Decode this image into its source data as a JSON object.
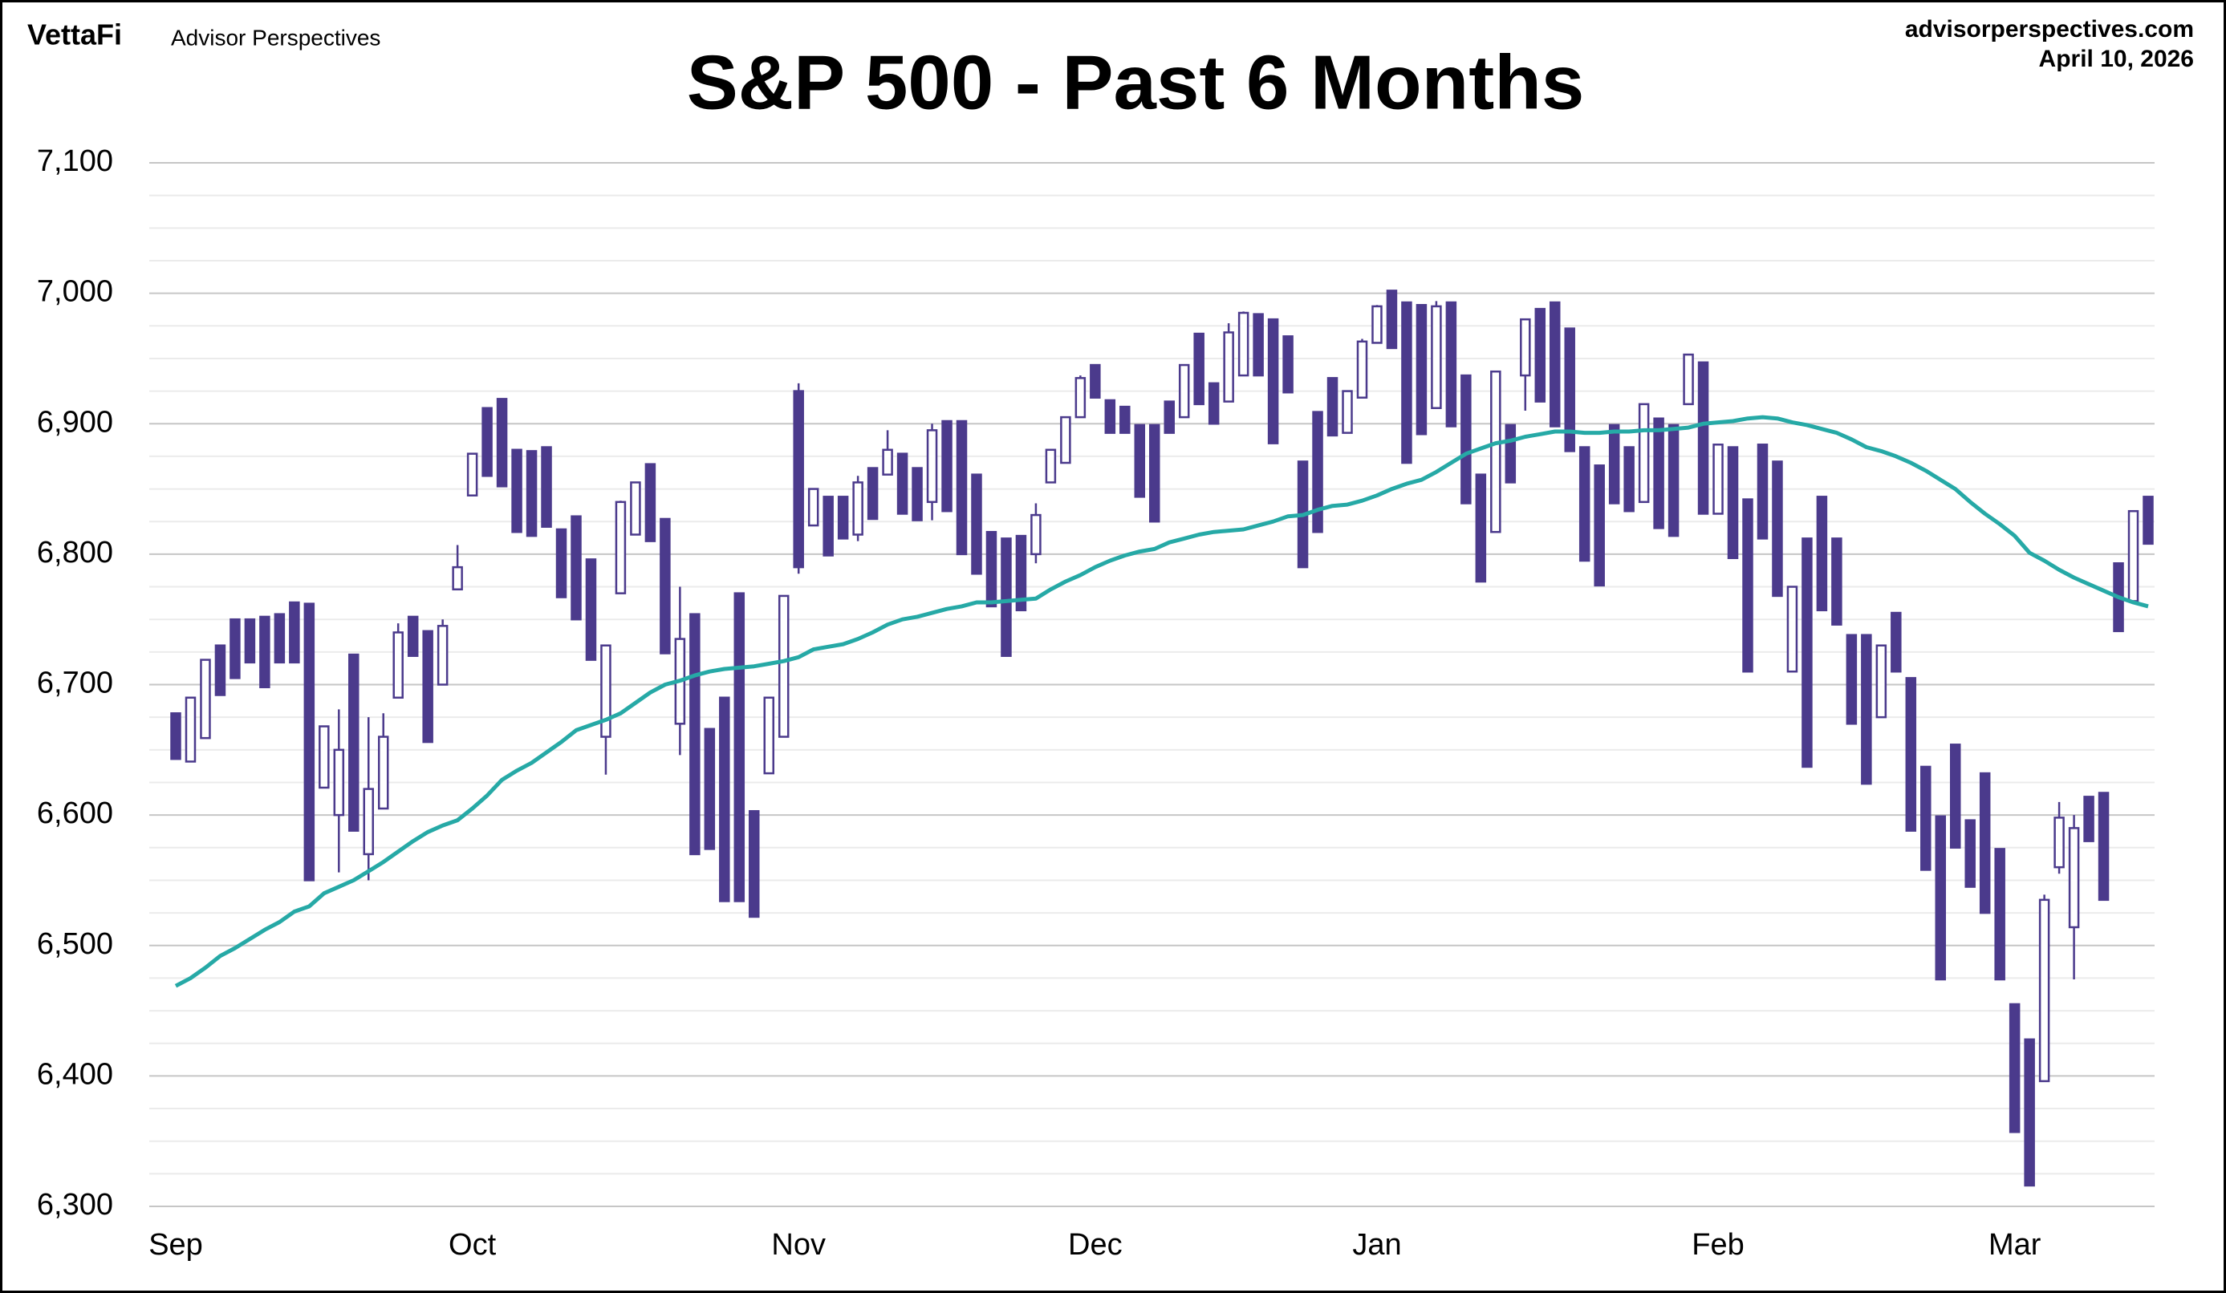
{
  "header": {
    "logo": "VettaFi",
    "brand": "Advisor Perspectives",
    "site": "advisorperspectives.com",
    "date": "April 10, 2026"
  },
  "chart_data": {
    "type": "candlestick",
    "title": "S&P 500 - Past 6 Months",
    "categories": [
      "Sep",
      null,
      null,
      null,
      null,
      null,
      null,
      null,
      null,
      null,
      null,
      null,
      null,
      null,
      null,
      null,
      null,
      null,
      null,
      null,
      "Oct",
      null,
      null,
      null,
      null,
      null,
      null,
      null,
      null,
      null,
      null,
      null,
      null,
      null,
      null,
      null,
      null,
      null,
      null,
      null,
      null,
      null,
      "Nov",
      null,
      null,
      null,
      null,
      null,
      null,
      null,
      null,
      null,
      null,
      null,
      null,
      null,
      null,
      null,
      null,
      null,
      null,
      null,
      "Dec",
      null,
      null,
      null,
      null,
      null,
      null,
      null,
      null,
      null,
      null,
      null,
      null,
      null,
      null,
      null,
      null,
      null,
      null,
      "Jan",
      null,
      null,
      null,
      null,
      null,
      null,
      null,
      null,
      null,
      null,
      null,
      null,
      null,
      null,
      null,
      null,
      null,
      null,
      null,
      null,
      null,
      null,
      "Feb",
      null,
      null,
      null,
      null,
      null,
      null,
      null,
      null,
      null,
      null,
      null,
      null,
      null,
      null,
      null,
      null,
      null,
      null,
      null,
      "Mar",
      null,
      null,
      null,
      null,
      null,
      null,
      null,
      null,
      null
    ],
    "open": [
      6678,
      6641,
      6659,
      6730,
      6750,
      6750,
      6752,
      6754,
      6763,
      6762,
      6621,
      6600,
      6723,
      6570,
      6605,
      6690,
      6752,
      6741,
      6700,
      6773,
      6845,
      6912,
      6919,
      6880,
      6879,
      6882,
      6819,
      6829,
      6796,
      6660,
      6770,
      6815,
      6869,
      6827,
      6670,
      6754,
      6666,
      6690,
      6770,
      6603,
      6632,
      6660,
      6925,
      6822,
      6844,
      6844,
      6815,
      6866,
      6861,
      6877,
      6866,
      6840,
      6902,
      6902,
      6861,
      6817,
      6812,
      6814,
      6800,
      6855,
      6870,
      6905,
      6945,
      6918,
      6913,
      6899,
      6899,
      6917,
      6905,
      6969,
      6931,
      6917,
      6937,
      6984,
      6980,
      6967,
      6871,
      6909,
      6935,
      6893,
      6920,
      6962,
      7002,
      6993,
      6991,
      6912,
      6993,
      6937,
      6861,
      6817,
      6899,
      6937,
      6988,
      6993,
      6973,
      6882,
      6868,
      6899,
      6882,
      6840,
      6904,
      6899,
      6915,
      6947,
      6831,
      6882,
      6842,
      6884,
      6871,
      6710,
      6812,
      6844,
      6812,
      6738,
      6738,
      6675,
      6755,
      6705,
      6637,
      6599,
      6654,
      6596,
      6632,
      6574,
      6455,
      6428,
      6396,
      6560,
      6514,
      6614,
      6617,
      6793,
      6764,
      6844
    ],
    "high": [
      6678,
      6690,
      6719,
      6730,
      6750,
      6750,
      6752,
      6754,
      6763,
      6762,
      6668,
      6681,
      6723,
      6675,
      6678,
      6747,
      6752,
      6741,
      6750,
      6807,
      6877,
      6912,
      6919,
      6880,
      6879,
      6882,
      6819,
      6829,
      6796,
      6730,
      6841,
      6855,
      6869,
      6827,
      6775,
      6754,
      6666,
      6690,
      6770,
      6603,
      6690,
      6768,
      6931,
      6850,
      6844,
      6844,
      6860,
      6866,
      6895,
      6877,
      6866,
      6900,
      6902,
      6902,
      6861,
      6817,
      6812,
      6814,
      6839,
      6880,
      6905,
      6937,
      6945,
      6918,
      6913,
      6899,
      6899,
      6917,
      6945,
      6969,
      6931,
      6977,
      6986,
      6984,
      6980,
      6967,
      6871,
      6909,
      6935,
      6925,
      6965,
      6991,
      7002,
      6993,
      6991,
      6994,
      6993,
      6937,
      6861,
      6940,
      6899,
      6980,
      6988,
      6993,
      6973,
      6882,
      6868,
      6899,
      6882,
      6915,
      6904,
      6899,
      6953,
      6947,
      6884,
      6882,
      6842,
      6884,
      6871,
      6775,
      6812,
      6844,
      6812,
      6738,
      6738,
      6730,
      6755,
      6705,
      6637,
      6599,
      6654,
      6596,
      6632,
      6574,
      6455,
      6428,
      6539,
      6610,
      6600,
      6614,
      6617,
      6793,
      6833,
      6844
    ],
    "low": [
      6643,
      6641,
      6659,
      6692,
      6705,
      6717,
      6698,
      6717,
      6717,
      6550,
      6621,
      6556,
      6588,
      6550,
      6605,
      6690,
      6722,
      6656,
      6700,
      6773,
      6845,
      6860,
      6852,
      6817,
      6814,
      6821,
      6767,
      6750,
      6719,
      6631,
      6770,
      6815,
      6810,
      6724,
      6646,
      6570,
      6574,
      6534,
      6534,
      6522,
      6632,
      6660,
      6785,
      6822,
      6799,
      6812,
      6810,
      6827,
      6861,
      6831,
      6826,
      6826,
      6833,
      6800,
      6785,
      6760,
      6722,
      6757,
      6793,
      6855,
      6870,
      6905,
      6920,
      6893,
      6893,
      6844,
      6825,
      6893,
      6905,
      6915,
      6900,
      6917,
      6937,
      6937,
      6885,
      6924,
      6790,
      6817,
      6891,
      6893,
      6920,
      6962,
      6958,
      6870,
      6892,
      6912,
      6898,
      6839,
      6779,
      6817,
      6855,
      6910,
      6917,
      6898,
      6879,
      6795,
      6776,
      6839,
      6833,
      6840,
      6820,
      6814,
      6915,
      6831,
      6831,
      6797,
      6710,
      6812,
      6768,
      6710,
      6637,
      6757,
      6746,
      6670,
      6624,
      6675,
      6710,
      6588,
      6558,
      6474,
      6575,
      6545,
      6525,
      6474,
      6357,
      6316,
      6396,
      6555,
      6474,
      6580,
      6535,
      6741,
      6764,
      6808
    ],
    "close": [
      6643,
      6690,
      6719,
      6692,
      6705,
      6717,
      6698,
      6717,
      6717,
      6550,
      6668,
      6650,
      6588,
      6620,
      6660,
      6740,
      6722,
      6656,
      6745,
      6790,
      6877,
      6860,
      6852,
      6817,
      6814,
      6821,
      6767,
      6750,
      6719,
      6730,
      6840,
      6855,
      6810,
      6724,
      6735,
      6570,
      6574,
      6534,
      6534,
      6522,
      6690,
      6768,
      6790,
      6850,
      6799,
      6812,
      6855,
      6827,
      6880,
      6831,
      6826,
      6895,
      6833,
      6800,
      6785,
      6760,
      6722,
      6757,
      6830,
      6880,
      6905,
      6935,
      6920,
      6893,
      6893,
      6844,
      6825,
      6893,
      6945,
      6915,
      6900,
      6970,
      6985,
      6937,
      6885,
      6924,
      6790,
      6817,
      6891,
      6925,
      6963,
      6990,
      6958,
      6870,
      6892,
      6990,
      6898,
      6839,
      6779,
      6940,
      6855,
      6980,
      6917,
      6898,
      6879,
      6795,
      6776,
      6839,
      6833,
      6915,
      6820,
      6814,
      6953,
      6831,
      6884,
      6797,
      6710,
      6812,
      6768,
      6775,
      6637,
      6757,
      6746,
      6670,
      6624,
      6730,
      6710,
      6588,
      6558,
      6474,
      6575,
      6545,
      6525,
      6474,
      6357,
      6316,
      6535,
      6598,
      6590,
      6580,
      6535,
      6741,
      6833,
      6808
    ],
    "moving_average": {
      "color": "#26a9a6",
      "values": [
        6469,
        6475,
        6483,
        6492,
        6498,
        6505,
        6512,
        6518,
        6526,
        6530,
        6540,
        6545,
        6550,
        6557,
        6564,
        6572,
        6580,
        6587,
        6592,
        6596,
        6605,
        6615,
        6627,
        6634,
        6640,
        6648,
        6656,
        6665,
        6669,
        6673,
        6678,
        6686,
        6694,
        6700,
        6703,
        6707,
        6710,
        6712,
        6713,
        6714,
        6716,
        6718,
        6721,
        6727,
        6729,
        6731,
        6735,
        6740,
        6746,
        6750,
        6752,
        6755,
        6758,
        6760,
        6763,
        6763,
        6764,
        6765,
        6766,
        6773,
        6779,
        6784,
        6790,
        6795,
        6799,
        6802,
        6804,
        6809,
        6812,
        6815,
        6817,
        6818,
        6819,
        6822,
        6825,
        6829,
        6830,
        6834,
        6837,
        6838,
        6841,
        6845,
        6850,
        6854,
        6857,
        6863,
        6870,
        6877,
        6881,
        6885,
        6887,
        6890,
        6892,
        6894,
        6894,
        6893,
        6893,
        6894,
        6894,
        6895,
        6895,
        6896,
        6897,
        6900,
        6901,
        6902,
        6904,
        6905,
        6904,
        6901,
        6899,
        6896,
        6893,
        6888,
        6882,
        6879,
        6875,
        6870,
        6864,
        6857,
        6850,
        6840,
        6831,
        6823,
        6814,
        6801,
        6795,
        6788,
        6782,
        6777,
        6772,
        6767,
        6763,
        6760
      ]
    },
    "up_color": "#ffffff",
    "down_color": "#4b3a8c",
    "ylim": [
      6300,
      7100
    ],
    "yticks": [
      {
        "value": 6300,
        "label": "6,300"
      },
      {
        "value": 6400,
        "label": "6,400"
      },
      {
        "value": 6500,
        "label": "6,500"
      },
      {
        "value": 6600,
        "label": "6,600"
      },
      {
        "value": 6700,
        "label": "6,700"
      },
      {
        "value": 6800,
        "label": "6,800"
      },
      {
        "value": 6900,
        "label": "6,900"
      },
      {
        "value": 7000,
        "label": "7,000"
      },
      {
        "value": 7100,
        "label": "7,100"
      }
    ],
    "minor_yticks": [
      6325,
      6350,
      6375,
      6425,
      6450,
      6475,
      6525,
      6550,
      6575,
      6625,
      6650,
      6675,
      6725,
      6750,
      6775,
      6825,
      6850,
      6875,
      6925,
      6950,
      6975,
      7025,
      7050,
      7075
    ],
    "grid": true
  }
}
